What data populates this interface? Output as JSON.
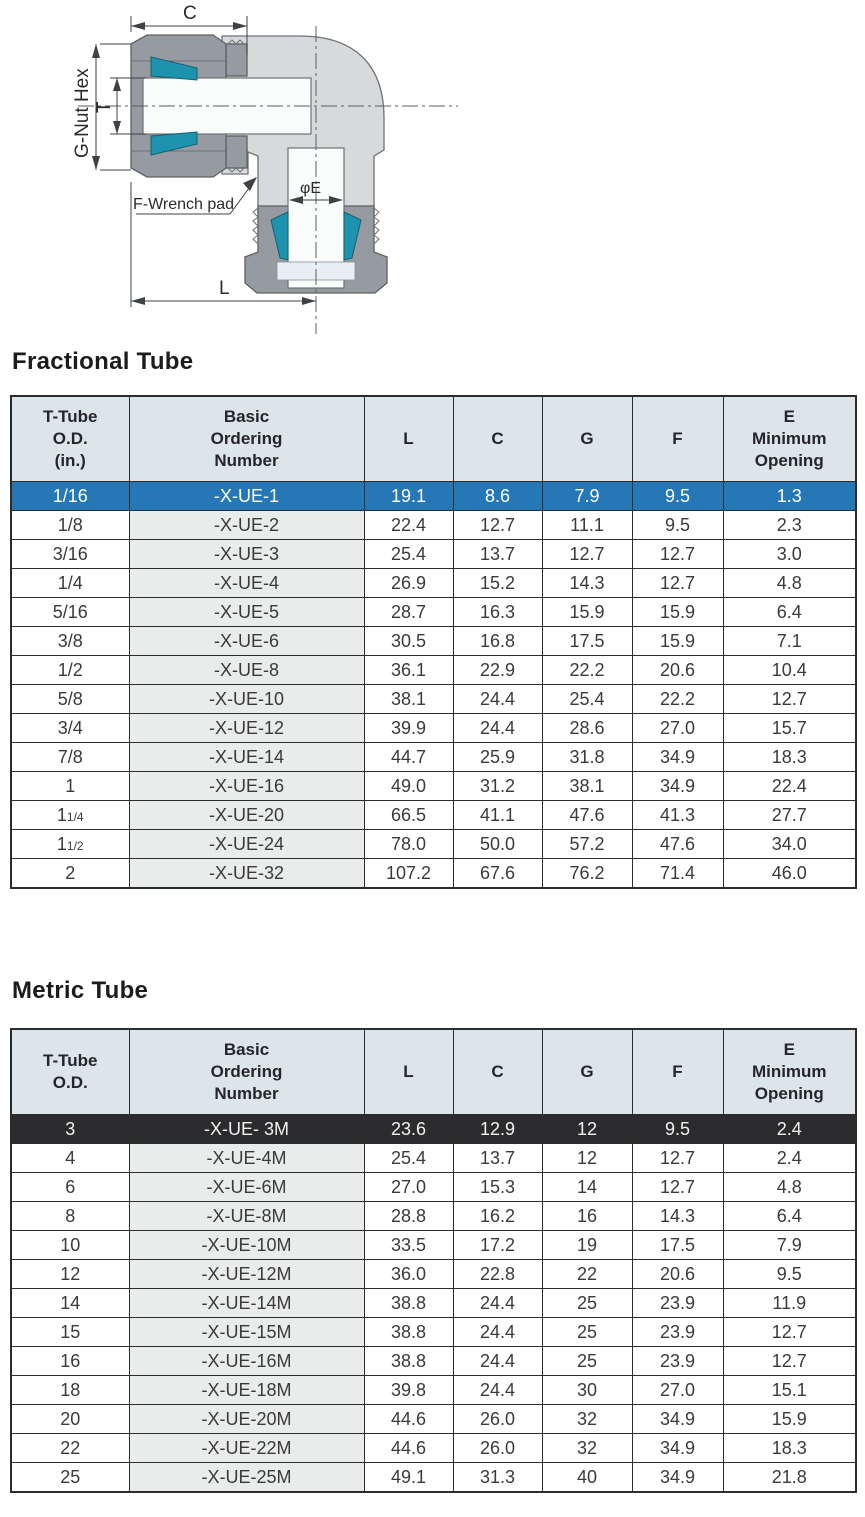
{
  "diagram": {
    "labels": {
      "c": "C",
      "g_nut_hex": "G-Nut Hex",
      "t": "T",
      "f_wrench_pad": "F-Wrench pad",
      "phi_e": "φE",
      "l": "L"
    },
    "colors": {
      "body": "#d8d9db",
      "nut": "#969ba1",
      "ferrule": "#1e93ae",
      "bore": "#fafbfb",
      "outline": "#6e7276",
      "centerline": "#5a5e63",
      "dimension": "#3e4246"
    }
  },
  "style": {
    "header_bg": "#dce5ea",
    "header_text": "#25252d",
    "part_col_bg": "#e9eceb",
    "border": "#2c2c2c",
    "row_text": "#3a3a3a",
    "blue_row_bg": "#2677b5",
    "blue_row_text": "#ffffff",
    "dark_row_bg": "#2b2b2e",
    "dark_row_text": "#f2f2f2"
  },
  "fractional": {
    "title": "Fractional Tube",
    "headers": [
      "T-Tube\nO.D.\n(in.)",
      "Basic\nOrdering\nNumber",
      "L",
      "C",
      "G",
      "F",
      "E\nMinimum\nOpening"
    ],
    "highlight_row": 0,
    "highlight_style": "blue",
    "rows": [
      [
        "1/16",
        "-X-UE-1",
        "19.1",
        "8.6",
        "7.9",
        "9.5",
        "1.3"
      ],
      [
        "1/8",
        "-X-UE-2",
        "22.4",
        "12.7",
        "11.1",
        "9.5",
        "2.3"
      ],
      [
        "3/16",
        "-X-UE-3",
        "25.4",
        "13.7",
        "12.7",
        "12.7",
        "3.0"
      ],
      [
        "1/4",
        "-X-UE-4",
        "26.9",
        "15.2",
        "14.3",
        "12.7",
        "4.8"
      ],
      [
        "5/16",
        "-X-UE-5",
        "28.7",
        "16.3",
        "15.9",
        "15.9",
        "6.4"
      ],
      [
        "3/8",
        "-X-UE-6",
        "30.5",
        "16.8",
        "17.5",
        "15.9",
        "7.1"
      ],
      [
        "1/2",
        "-X-UE-8",
        "36.1",
        "22.9",
        "22.2",
        "20.6",
        "10.4"
      ],
      [
        "5/8",
        "-X-UE-10",
        "38.1",
        "24.4",
        "25.4",
        "22.2",
        "12.7"
      ],
      [
        "3/4",
        "-X-UE-12",
        "39.9",
        "24.4",
        "28.6",
        "27.0",
        "15.7"
      ],
      [
        "7/8",
        "-X-UE-14",
        "44.7",
        "25.9",
        "31.8",
        "34.9",
        "18.3"
      ],
      [
        "1",
        "-X-UE-16",
        "49.0",
        "31.2",
        "38.1",
        "34.9",
        "22.4"
      ],
      [
        "1 1/4",
        "-X-UE-20",
        "66.5",
        "41.1",
        "47.6",
        "41.3",
        "27.7"
      ],
      [
        "1 1/2",
        "-X-UE-24",
        "78.0",
        "50.0",
        "57.2",
        "47.6",
        "34.0"
      ],
      [
        "2",
        "-X-UE-32",
        "107.2",
        "67.6",
        "76.2",
        "71.4",
        "46.0"
      ]
    ]
  },
  "metric": {
    "title": "Metric Tube",
    "headers": [
      "T-Tube\nO.D.",
      "Basic\nOrdering\nNumber",
      "L",
      "C",
      "G",
      "F",
      "E\nMinimum\nOpening"
    ],
    "highlight_row": 0,
    "highlight_style": "dark",
    "rows": [
      [
        "3",
        "-X-UE- 3M",
        "23.6",
        "12.9",
        "12",
        "9.5",
        "2.4"
      ],
      [
        "4",
        "-X-UE-4M",
        "25.4",
        "13.7",
        "12",
        "12.7",
        "2.4"
      ],
      [
        "6",
        "-X-UE-6M",
        "27.0",
        "15.3",
        "14",
        "12.7",
        "4.8"
      ],
      [
        "8",
        "-X-UE-8M",
        "28.8",
        "16.2",
        "16",
        "14.3",
        "6.4"
      ],
      [
        "10",
        "-X-UE-10M",
        "33.5",
        "17.2",
        "19",
        "17.5",
        "7.9"
      ],
      [
        "12",
        "-X-UE-12M",
        "36.0",
        "22.8",
        "22",
        "20.6",
        "9.5"
      ],
      [
        "14",
        "-X-UE-14M",
        "38.8",
        "24.4",
        "25",
        "23.9",
        "11.9"
      ],
      [
        "15",
        "-X-UE-15M",
        "38.8",
        "24.4",
        "25",
        "23.9",
        "12.7"
      ],
      [
        "16",
        "-X-UE-16M",
        "38.8",
        "24.4",
        "25",
        "23.9",
        "12.7"
      ],
      [
        "18",
        "-X-UE-18M",
        "39.8",
        "24.4",
        "30",
        "27.0",
        "15.1"
      ],
      [
        "20",
        "-X-UE-20M",
        "44.6",
        "26.0",
        "32",
        "34.9",
        "15.9"
      ],
      [
        "22",
        "-X-UE-22M",
        "44.6",
        "26.0",
        "32",
        "34.9",
        "18.3"
      ],
      [
        "25",
        "-X-UE-25M",
        "49.1",
        "31.3",
        "40",
        "34.9",
        "21.8"
      ]
    ]
  }
}
